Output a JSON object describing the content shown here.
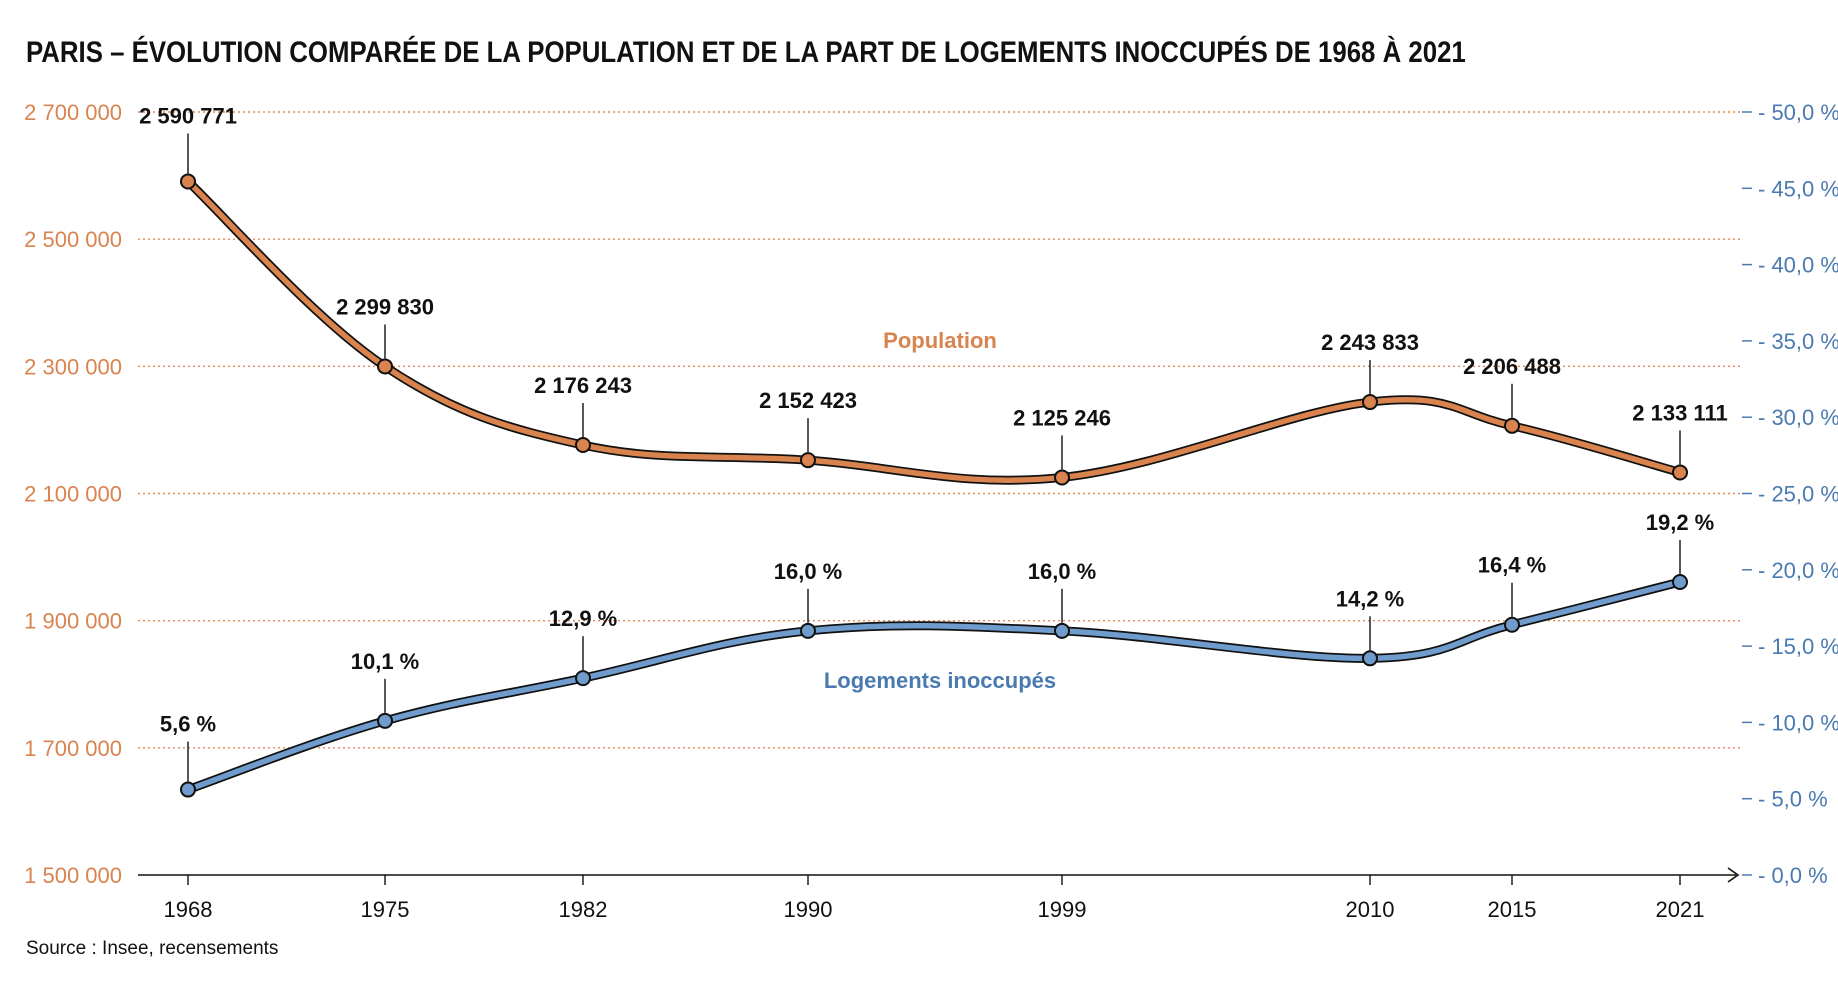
{
  "colors": {
    "population": "#d9834f",
    "population_fill": "#d9834f",
    "logements": "#4a7ab0",
    "logements_fill": "#6f9ccc",
    "grid": "#e08a55",
    "outline": "#111111",
    "text": "#111111"
  },
  "chart_data": {
    "type": "line",
    "title": "PARIS – ÉVOLUTION COMPARÉE DE LA POPULATION ET DE LA PART DE LOGEMENTS INOCCUPÉS DE 1968 À 2021",
    "source": "Source : Insee, recensements",
    "x": [
      1968,
      1975,
      1982,
      1990,
      1999,
      2010,
      2015,
      2021
    ],
    "x_tick_labels": [
      "1968",
      "1975",
      "1982",
      "1990",
      "1999",
      "2010",
      "2015",
      "2021"
    ],
    "y_left": {
      "range": [
        1500000,
        2700000
      ],
      "ticks": [
        1500000,
        1700000,
        1900000,
        2100000,
        2300000,
        2500000,
        2700000
      ],
      "tick_labels": [
        "1 500 000",
        "1 700 000",
        "1 900 000",
        "2 100 000",
        "2 300 000",
        "2 500 000",
        "2 700 000"
      ]
    },
    "y_right": {
      "range": [
        0,
        50
      ],
      "ticks": [
        0,
        5,
        10,
        15,
        20,
        25,
        30,
        35,
        40,
        45,
        50
      ],
      "tick_labels": [
        "0,0 %",
        "5,0 %",
        "10,0 %",
        "15,0 %",
        "20,0 %",
        "25,0 %",
        "30,0 %",
        "35,0 %",
        "40,0 %",
        "45,0 %",
        "50,0 %"
      ]
    },
    "grid": "horizontal-dotted",
    "series": [
      {
        "name": "Population",
        "axis": "left",
        "values": [
          2590771,
          2299830,
          2176243,
          2152423,
          2125246,
          2243833,
          2206488,
          2133111
        ],
        "value_labels": [
          "2 590 771",
          "2 299 830",
          "2 176 243",
          "2 152 423",
          "2 125 246",
          "2 243 833",
          "2 206 488",
          "2 133 111"
        ]
      },
      {
        "name": "Logements inoccupés",
        "axis": "right",
        "values": [
          5.6,
          10.1,
          12.9,
          16.0,
          16.0,
          14.2,
          16.4,
          19.2
        ],
        "value_labels": [
          "5,6 %",
          "10,1 %",
          "12,9 %",
          "16,0 %",
          "16,0 %",
          "14,2 %",
          "16,4 %",
          "19,2 %"
        ]
      }
    ]
  }
}
